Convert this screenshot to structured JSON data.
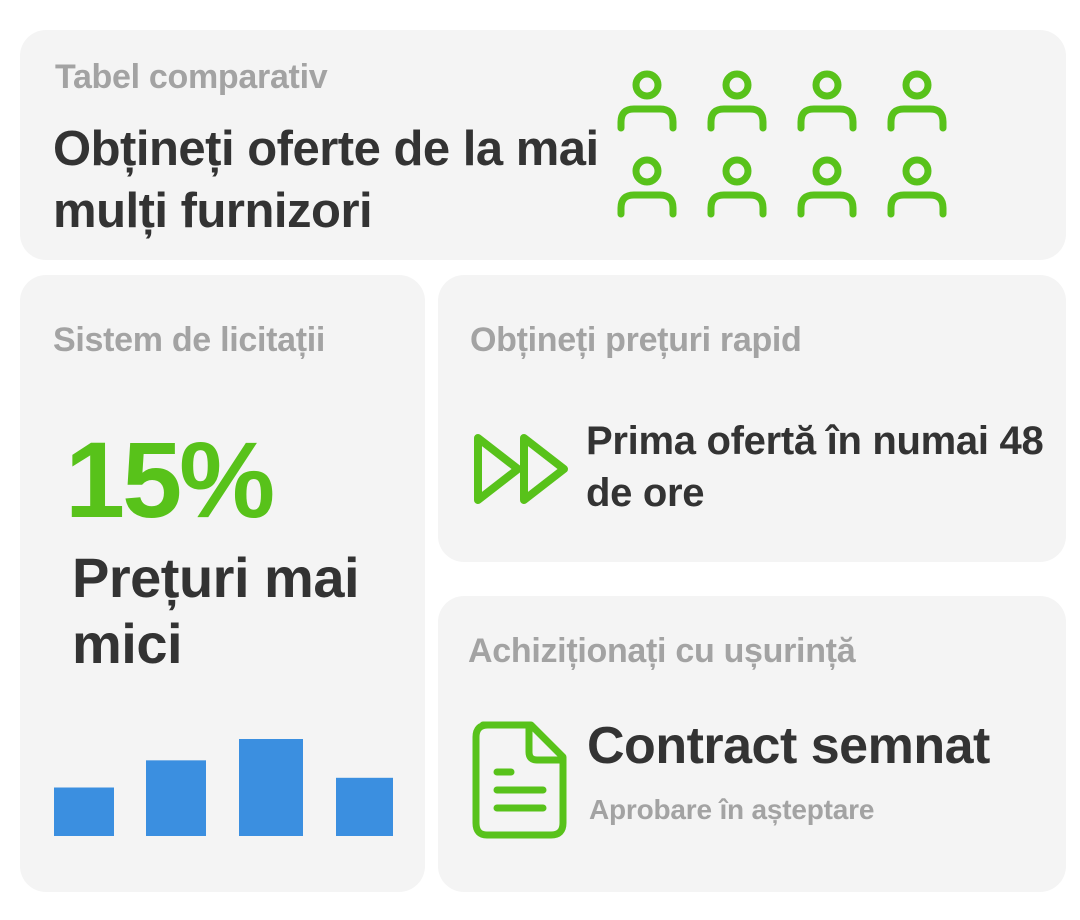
{
  "comparison_card": {
    "eyebrow": "Tabel comparativ",
    "title": "Obțineți oferte de la mai mulți furnizori",
    "icon": "person-icon",
    "icon_count": 8
  },
  "auction_card": {
    "eyebrow": "Sistem de licitații",
    "percentage": "15%",
    "label": "Prețuri mai mici",
    "chart_data": {
      "type": "bar",
      "values": [
        0.5,
        0.78,
        1.0,
        0.6
      ]
    }
  },
  "speed_card": {
    "eyebrow": "Obțineți prețuri rapid",
    "icon": "fast-forward-icon",
    "text": "Prima ofertă în numai 48 de ore"
  },
  "contract_card": {
    "eyebrow": "Achiziționați cu ușurință",
    "icon": "document-icon",
    "title": "Contract semnat",
    "subtitle": "Aprobare în așteptare"
  },
  "colors": {
    "accent_green": "#58c21a",
    "bar_blue": "#3b8fe0",
    "card_bg": "#f4f4f4",
    "text_dark": "#333333",
    "text_muted": "#a3a3a3"
  }
}
